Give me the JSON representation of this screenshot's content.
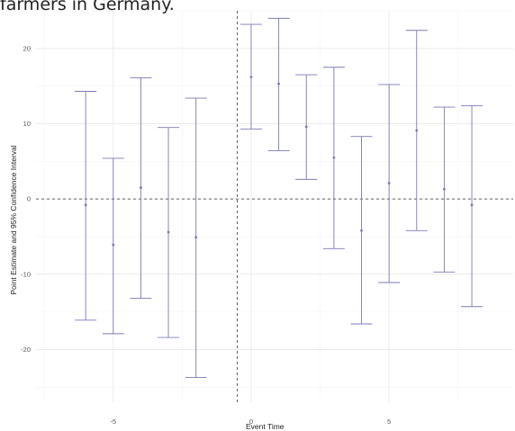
{
  "header_text": "farmers in Germany.",
  "chart_data": {
    "type": "errorbar",
    "title": "",
    "xlabel": "Event Time",
    "ylabel": "Point Estimate and 95% Confidence Interval",
    "xlim": [
      -7.8,
      9.5
    ],
    "ylim": [
      -27,
      25
    ],
    "x_ticks": [
      -5,
      0,
      5
    ],
    "y_ticks": [
      -20,
      -10,
      0,
      10,
      20
    ],
    "grid": true,
    "reference_lines": {
      "vertical_x": -0.5,
      "horizontal_y": 0
    },
    "series": [
      {
        "color": "#7b7bb5",
        "points": [
          {
            "x": -6,
            "estimate": -0.8,
            "lower": -16.1,
            "upper": 14.3
          },
          {
            "x": -5,
            "estimate": -6.1,
            "lower": -17.9,
            "upper": 5.4
          },
          {
            "x": -4,
            "estimate": 1.5,
            "lower": -13.2,
            "upper": 16.1
          },
          {
            "x": -3,
            "estimate": -4.4,
            "lower": -18.4,
            "upper": 9.5
          },
          {
            "x": -2,
            "estimate": -5.1,
            "lower": -23.7,
            "upper": 13.4
          },
          {
            "x": 0,
            "estimate": 16.2,
            "lower": 9.3,
            "upper": 23.2
          },
          {
            "x": 1,
            "estimate": 15.3,
            "lower": 6.4,
            "upper": 24.0
          },
          {
            "x": 2,
            "estimate": 9.6,
            "lower": 2.6,
            "upper": 16.5
          },
          {
            "x": 3,
            "estimate": 5.5,
            "lower": -6.6,
            "upper": 17.5
          },
          {
            "x": 4,
            "estimate": -4.2,
            "lower": -16.6,
            "upper": 8.3
          },
          {
            "x": 5,
            "estimate": 2.1,
            "lower": -11.1,
            "upper": 15.2
          },
          {
            "x": 6,
            "estimate": 9.1,
            "lower": -4.2,
            "upper": 22.4
          },
          {
            "x": 7,
            "estimate": 1.3,
            "lower": -9.7,
            "upper": 12.2
          },
          {
            "x": 8,
            "estimate": -0.8,
            "lower": -14.3,
            "upper": 12.4
          }
        ]
      }
    ]
  }
}
